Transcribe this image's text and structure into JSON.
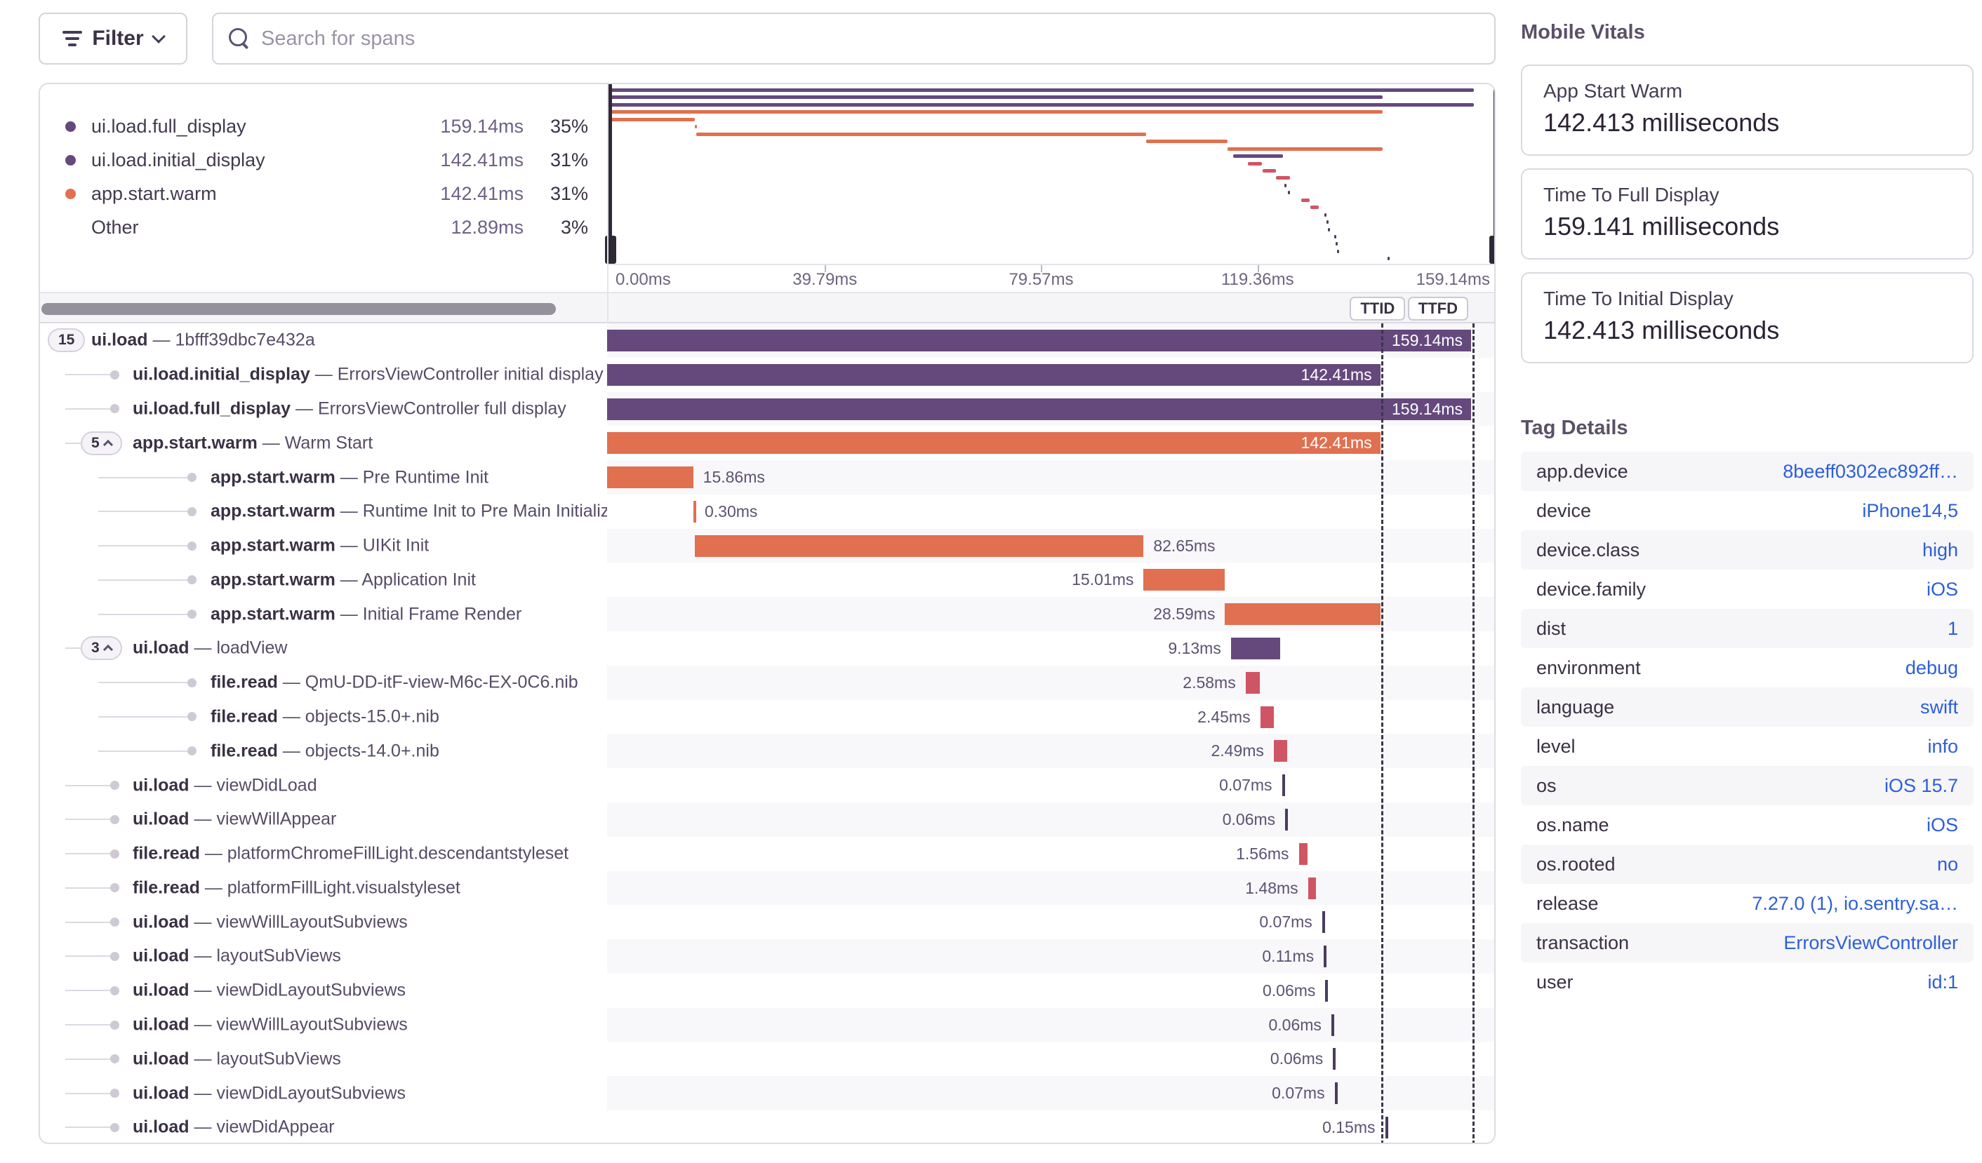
{
  "toolbar": {
    "filter_label": "Filter",
    "search_placeholder": "Search for spans"
  },
  "separator": "—",
  "legend": {
    "items": [
      {
        "label": "ui.load.full_display",
        "value": "159.14ms",
        "pct": "35%",
        "color": "#65497d"
      },
      {
        "label": "ui.load.initial_display",
        "value": "142.41ms",
        "pct": "31%",
        "color": "#65497d"
      },
      {
        "label": "app.start.warm",
        "value": "142.41ms",
        "pct": "31%",
        "color": "#e07050"
      },
      {
        "label": "Other",
        "value": "12.89ms",
        "pct": "3%",
        "color": null
      }
    ]
  },
  "axis": {
    "range_ms": 163.4,
    "ticks": [
      {
        "label": "0.00ms",
        "ms": 0
      },
      {
        "label": "39.79ms",
        "ms": 39.79
      },
      {
        "label": "79.57ms",
        "ms": 79.57
      },
      {
        "label": "119.36ms",
        "ms": 119.36
      },
      {
        "label": "159.14ms",
        "ms": 159.14
      }
    ]
  },
  "markers": [
    {
      "label": "TTID",
      "ms": 142.41
    },
    {
      "label": "TTFD",
      "ms": 159.14
    }
  ],
  "colors": {
    "purple": "#65497d",
    "orange": "#e07050",
    "red": "#d05564",
    "tick": "#4a3b5f"
  },
  "spans": [
    {
      "op": "ui.load",
      "desc": "1bfff39dbc7e432a",
      "badge": "15",
      "caret": false,
      "depth": 0,
      "start": 0,
      "dur": 159.14,
      "label": "159.14ms",
      "color": "purple",
      "lpos": "in"
    },
    {
      "op": "ui.load.initial_display",
      "desc": "ErrorsViewController initial display",
      "badge": null,
      "depth": 1,
      "start": 0,
      "dur": 142.41,
      "label": "142.41ms",
      "color": "purple",
      "lpos": "in"
    },
    {
      "op": "ui.load.full_display",
      "desc": "ErrorsViewController full display",
      "badge": null,
      "depth": 1,
      "start": 0,
      "dur": 159.14,
      "label": "159.14ms",
      "color": "purple",
      "lpos": "in"
    },
    {
      "op": "app.start.warm",
      "desc": "Warm Start",
      "badge": "5",
      "caret": true,
      "depth": 1,
      "start": 0,
      "dur": 142.41,
      "label": "142.41ms",
      "color": "orange",
      "lpos": "in"
    },
    {
      "op": "app.start.warm",
      "desc": "Pre Runtime Init",
      "badge": null,
      "depth": 2,
      "start": 0,
      "dur": 15.86,
      "label": "15.86ms",
      "color": "orange",
      "lpos": "r"
    },
    {
      "op": "app.start.warm",
      "desc": "Runtime Init to Pre Main Initializers",
      "badge": null,
      "depth": 2,
      "start": 15.86,
      "dur": 0.3,
      "label": "0.30ms",
      "color": "orange",
      "lpos": "r"
    },
    {
      "op": "app.start.warm",
      "desc": "UIKit Init",
      "badge": null,
      "depth": 2,
      "start": 16.16,
      "dur": 82.65,
      "label": "82.65ms",
      "color": "orange",
      "lpos": "r"
    },
    {
      "op": "app.start.warm",
      "desc": "Application Init",
      "badge": null,
      "depth": 2,
      "start": 98.81,
      "dur": 15.01,
      "label": "15.01ms",
      "color": "orange",
      "lpos": "l"
    },
    {
      "op": "app.start.warm",
      "desc": "Initial Frame Render",
      "badge": null,
      "depth": 2,
      "start": 113.82,
      "dur": 28.59,
      "label": "28.59ms",
      "color": "orange",
      "lpos": "l"
    },
    {
      "op": "ui.load",
      "desc": "loadView",
      "badge": "3",
      "caret": true,
      "depth": 1,
      "start": 114.9,
      "dur": 9.13,
      "label": "9.13ms",
      "color": "purple",
      "lpos": "l"
    },
    {
      "op": "file.read",
      "desc": "QmU-DD-itF-view-M6c-EX-0C6.nib",
      "badge": null,
      "depth": 2,
      "start": 117.6,
      "dur": 2.58,
      "label": "2.58ms",
      "color": "red",
      "lpos": "l"
    },
    {
      "op": "file.read",
      "desc": "objects-15.0+.nib",
      "badge": null,
      "depth": 2,
      "start": 120.3,
      "dur": 2.45,
      "label": "2.45ms",
      "color": "red",
      "lpos": "l"
    },
    {
      "op": "file.read",
      "desc": "objects-14.0+.nib",
      "badge": null,
      "depth": 2,
      "start": 122.8,
      "dur": 2.49,
      "label": "2.49ms",
      "color": "red",
      "lpos": "l"
    },
    {
      "op": "ui.load",
      "desc": "viewDidLoad",
      "badge": null,
      "depth": 1,
      "start": 124.3,
      "dur": 0.07,
      "label": "0.07ms",
      "color": "tick",
      "lpos": "l"
    },
    {
      "op": "ui.load",
      "desc": "viewWillAppear",
      "badge": null,
      "depth": 1,
      "start": 124.9,
      "dur": 0.06,
      "label": "0.06ms",
      "color": "tick",
      "lpos": "l"
    },
    {
      "op": "file.read",
      "desc": "platformChromeFillLight.descendantstyleset",
      "badge": null,
      "depth": 1,
      "start": 127.4,
      "dur": 1.56,
      "label": "1.56ms",
      "color": "red",
      "lpos": "l"
    },
    {
      "op": "file.read",
      "desc": "platformFillLight.visualstyleset",
      "badge": null,
      "depth": 1,
      "start": 129.1,
      "dur": 1.48,
      "label": "1.48ms",
      "color": "red",
      "lpos": "l"
    },
    {
      "op": "ui.load",
      "desc": "viewWillLayoutSubviews",
      "badge": null,
      "depth": 1,
      "start": 131.7,
      "dur": 0.07,
      "label": "0.07ms",
      "color": "tick",
      "lpos": "l"
    },
    {
      "op": "ui.load",
      "desc": "layoutSubViews",
      "badge": null,
      "depth": 1,
      "start": 132.0,
      "dur": 0.11,
      "label": "0.11ms",
      "color": "tick",
      "lpos": "l"
    },
    {
      "op": "ui.load",
      "desc": "viewDidLayoutSubviews",
      "badge": null,
      "depth": 1,
      "start": 132.3,
      "dur": 0.06,
      "label": "0.06ms",
      "color": "tick",
      "lpos": "l"
    },
    {
      "op": "ui.load",
      "desc": "viewWillLayoutSubviews",
      "badge": null,
      "depth": 1,
      "start": 133.4,
      "dur": 0.06,
      "label": "0.06ms",
      "color": "tick",
      "lpos": "l"
    },
    {
      "op": "ui.load",
      "desc": "layoutSubViews",
      "badge": null,
      "depth": 1,
      "start": 133.7,
      "dur": 0.06,
      "label": "0.06ms",
      "color": "tick",
      "lpos": "l"
    },
    {
      "op": "ui.load",
      "desc": "viewDidLayoutSubviews",
      "badge": null,
      "depth": 1,
      "start": 134.0,
      "dur": 0.07,
      "label": "0.07ms",
      "color": "tick",
      "lpos": "l"
    },
    {
      "op": "ui.load",
      "desc": "viewDidAppear",
      "badge": null,
      "depth": 1,
      "start": 143.3,
      "dur": 0.15,
      "label": "0.15ms",
      "color": "tick",
      "lpos": "l"
    }
  ],
  "vitals": {
    "title": "Mobile Vitals",
    "cards": [
      {
        "label": "App Start Warm",
        "value": "142.413 milliseconds"
      },
      {
        "label": "Time To Full Display",
        "value": "159.141 milliseconds"
      },
      {
        "label": "Time To Initial Display",
        "value": "142.413 milliseconds"
      }
    ]
  },
  "tags": {
    "title": "Tag Details",
    "rows": [
      {
        "key": "app.device",
        "value": "8beeff0302ec892ff…"
      },
      {
        "key": "device",
        "value": "iPhone14,5"
      },
      {
        "key": "device.class",
        "value": "high"
      },
      {
        "key": "device.family",
        "value": "iOS"
      },
      {
        "key": "dist",
        "value": "1"
      },
      {
        "key": "environment",
        "value": "debug"
      },
      {
        "key": "language",
        "value": "swift"
      },
      {
        "key": "level",
        "value": "info"
      },
      {
        "key": "os",
        "value": "iOS 15.7"
      },
      {
        "key": "os.name",
        "value": "iOS"
      },
      {
        "key": "os.rooted",
        "value": "no"
      },
      {
        "key": "release",
        "value": "7.27.0 (1), io.sentry.sa…"
      },
      {
        "key": "transaction",
        "value": "ErrorsViewController"
      },
      {
        "key": "user",
        "value": "id:1"
      }
    ]
  }
}
